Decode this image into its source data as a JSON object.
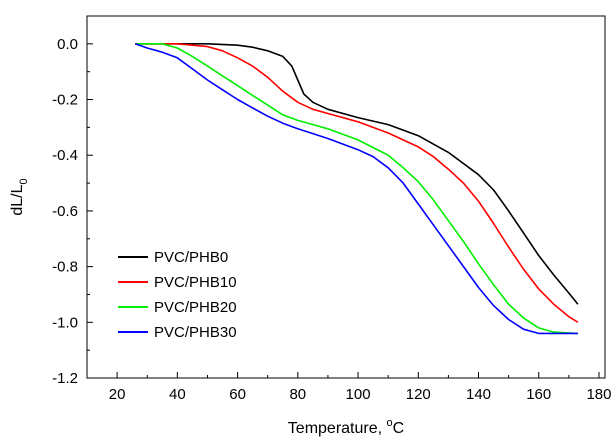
{
  "chart_data": {
    "type": "line",
    "xlabel": "Temperature, °C",
    "xlabel_parts": {
      "main": "Temperature, ",
      "sup": "o",
      "unit": "C"
    },
    "ylabel": "dL/L0",
    "ylabel_parts": {
      "main": "dL/L",
      "sub": "0"
    },
    "xlim": [
      10,
      182
    ],
    "ylim": [
      -1.2,
      0.1
    ],
    "x_ticks": [
      20,
      40,
      60,
      80,
      100,
      120,
      140,
      160,
      180
    ],
    "y_ticks": [
      0.0,
      -0.2,
      -0.4,
      -0.6,
      -0.8,
      -1.0,
      -1.2
    ],
    "y_tick_labels": [
      "0.0",
      "-0.2",
      "-0.4",
      "-0.6",
      "-0.8",
      "-1.0",
      "-1.2"
    ],
    "grid": false,
    "legend_position": "lower-left",
    "series": [
      {
        "name": "PVC/PHB0",
        "color": "#000000",
        "points": [
          [
            26,
            0.0
          ],
          [
            40,
            0.0
          ],
          [
            50,
            0.0
          ],
          [
            60,
            -0.005
          ],
          [
            65,
            -0.012
          ],
          [
            70,
            -0.025
          ],
          [
            75,
            -0.045
          ],
          [
            78,
            -0.08
          ],
          [
            80,
            -0.13
          ],
          [
            82,
            -0.18
          ],
          [
            85,
            -0.21
          ],
          [
            90,
            -0.235
          ],
          [
            100,
            -0.265
          ],
          [
            110,
            -0.29
          ],
          [
            120,
            -0.33
          ],
          [
            130,
            -0.39
          ],
          [
            140,
            -0.47
          ],
          [
            145,
            -0.525
          ],
          [
            150,
            -0.6
          ],
          [
            155,
            -0.68
          ],
          [
            160,
            -0.76
          ],
          [
            165,
            -0.83
          ],
          [
            170,
            -0.895
          ],
          [
            173,
            -0.935
          ]
        ]
      },
      {
        "name": "PVC/PHB10",
        "color": "#ff0000",
        "points": [
          [
            26,
            0.0
          ],
          [
            40,
            0.0
          ],
          [
            50,
            -0.01
          ],
          [
            55,
            -0.025
          ],
          [
            60,
            -0.05
          ],
          [
            65,
            -0.08
          ],
          [
            70,
            -0.12
          ],
          [
            75,
            -0.17
          ],
          [
            80,
            -0.21
          ],
          [
            85,
            -0.235
          ],
          [
            90,
            -0.25
          ],
          [
            100,
            -0.28
          ],
          [
            110,
            -0.32
          ],
          [
            120,
            -0.37
          ],
          [
            125,
            -0.405
          ],
          [
            130,
            -0.45
          ],
          [
            135,
            -0.5
          ],
          [
            140,
            -0.565
          ],
          [
            145,
            -0.645
          ],
          [
            150,
            -0.73
          ],
          [
            155,
            -0.81
          ],
          [
            160,
            -0.88
          ],
          [
            165,
            -0.935
          ],
          [
            170,
            -0.98
          ],
          [
            173,
            -1.0
          ]
        ]
      },
      {
        "name": "PVC/PHB20",
        "color": "#00ee00",
        "points": [
          [
            26,
            0.0
          ],
          [
            35,
            0.0
          ],
          [
            40,
            -0.015
          ],
          [
            45,
            -0.045
          ],
          [
            50,
            -0.08
          ],
          [
            55,
            -0.115
          ],
          [
            60,
            -0.15
          ],
          [
            65,
            -0.185
          ],
          [
            70,
            -0.22
          ],
          [
            75,
            -0.255
          ],
          [
            80,
            -0.275
          ],
          [
            90,
            -0.305
          ],
          [
            100,
            -0.345
          ],
          [
            110,
            -0.4
          ],
          [
            115,
            -0.445
          ],
          [
            120,
            -0.495
          ],
          [
            125,
            -0.56
          ],
          [
            130,
            -0.635
          ],
          [
            135,
            -0.71
          ],
          [
            140,
            -0.79
          ],
          [
            145,
            -0.865
          ],
          [
            150,
            -0.935
          ],
          [
            155,
            -0.985
          ],
          [
            160,
            -1.02
          ],
          [
            165,
            -1.035
          ],
          [
            170,
            -1.038
          ],
          [
            173,
            -1.04
          ]
        ]
      },
      {
        "name": "PVC/PHB30",
        "color": "#0000ff",
        "points": [
          [
            26,
            0.0
          ],
          [
            30,
            -0.015
          ],
          [
            35,
            -0.03
          ],
          [
            40,
            -0.05
          ],
          [
            45,
            -0.09
          ],
          [
            50,
            -0.13
          ],
          [
            55,
            -0.165
          ],
          [
            60,
            -0.2
          ],
          [
            65,
            -0.23
          ],
          [
            70,
            -0.26
          ],
          [
            75,
            -0.285
          ],
          [
            80,
            -0.305
          ],
          [
            90,
            -0.34
          ],
          [
            100,
            -0.38
          ],
          [
            105,
            -0.405
          ],
          [
            110,
            -0.445
          ],
          [
            115,
            -0.5
          ],
          [
            120,
            -0.575
          ],
          [
            125,
            -0.65
          ],
          [
            130,
            -0.725
          ],
          [
            135,
            -0.8
          ],
          [
            140,
            -0.875
          ],
          [
            145,
            -0.94
          ],
          [
            150,
            -0.99
          ],
          [
            155,
            -1.025
          ],
          [
            160,
            -1.04
          ],
          [
            165,
            -1.04
          ],
          [
            173,
            -1.04
          ]
        ]
      }
    ]
  }
}
